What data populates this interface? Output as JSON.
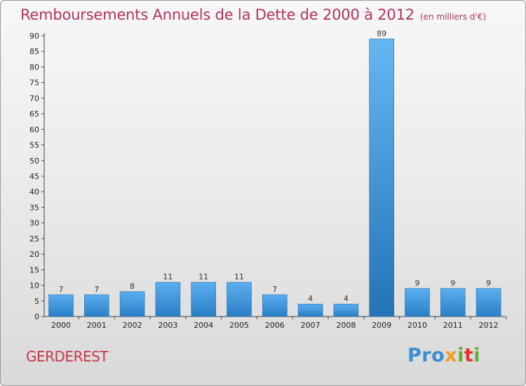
{
  "header": {
    "title": "Remboursements Annuels de la Dette de 2000 à 2012",
    "unit": "(en milliers d'€)"
  },
  "commune": "GERDEREST",
  "logo": {
    "p1": "Pro",
    "p2": "x",
    "p3": "i",
    "p4": "t",
    "p5": "i"
  },
  "colors": {
    "title": "#b0355f",
    "commune": "#c7384c",
    "bar_top": "#5aaef0",
    "bar_bottom": "#2a7ec4",
    "highlight_top": "#66b6f2",
    "highlight_bottom": "#2474b6"
  },
  "chart_data": {
    "type": "bar",
    "title": "Remboursements Annuels de la Dette de 2000 à 2012",
    "unit": "(en milliers d'€)",
    "categories": [
      "2000",
      "2001",
      "2002",
      "2003",
      "2004",
      "2005",
      "2006",
      "2007",
      "2008",
      "2009",
      "2010",
      "2011",
      "2012"
    ],
    "values": [
      7,
      7,
      8,
      11,
      11,
      11,
      7,
      4,
      4,
      89,
      9,
      9,
      9
    ],
    "ylim": [
      0,
      90
    ],
    "yticks": [
      0,
      5,
      10,
      15,
      20,
      25,
      30,
      35,
      40,
      45,
      50,
      55,
      60,
      65,
      70,
      75,
      80,
      85,
      90
    ],
    "highlight_index": 9,
    "xlabel": "",
    "ylabel": "",
    "grid": false
  }
}
